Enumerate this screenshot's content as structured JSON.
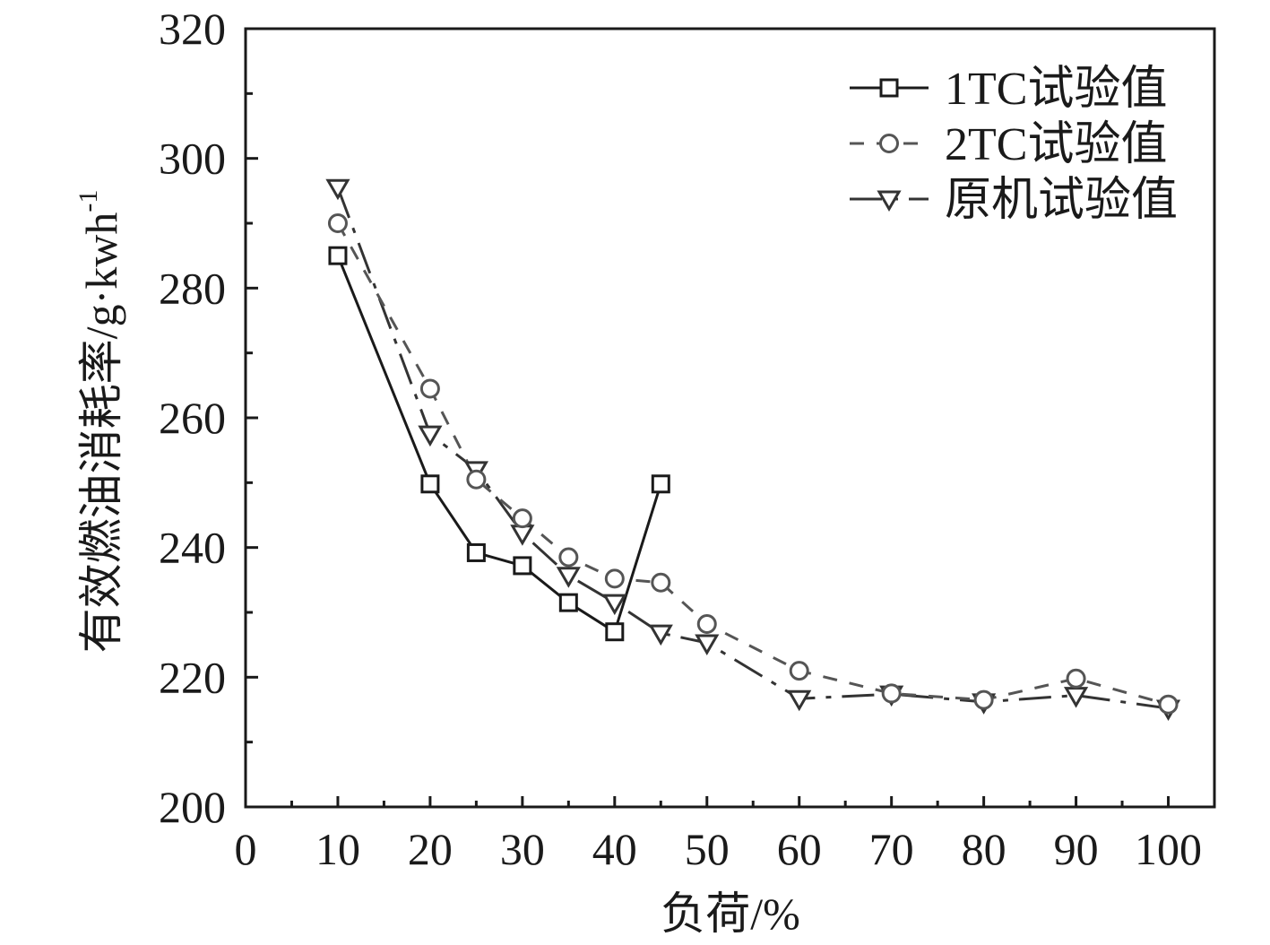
{
  "chart_data": {
    "type": "line",
    "xlabel": "负荷/%",
    "ylabel": "有效燃油消耗率/g·kwh",
    "ylabel_sup": "-1",
    "xlim": [
      0,
      105
    ],
    "ylim": [
      200,
      320
    ],
    "xticks": [
      0,
      10,
      20,
      30,
      40,
      50,
      60,
      70,
      80,
      90,
      100
    ],
    "yticks": [
      200,
      220,
      240,
      260,
      280,
      300,
      320
    ],
    "legend_position": "top-right",
    "series": [
      {
        "name": "1TC试验值",
        "marker": "square",
        "line": "solid",
        "color": "#1a1a1a",
        "x": [
          10,
          20,
          25,
          30,
          35,
          40,
          45
        ],
        "y": [
          285,
          249.8,
          239.2,
          237.2,
          231.5,
          227,
          249.8
        ]
      },
      {
        "name": "2TC试验值",
        "marker": "circle",
        "line": "dashed",
        "color": "#555555",
        "x": [
          10,
          20,
          25,
          30,
          35,
          40,
          45,
          50,
          60,
          70,
          80,
          90,
          100
        ],
        "y": [
          290,
          264.5,
          250.5,
          244.5,
          238.5,
          235.2,
          234.6,
          228.2,
          221,
          217.5,
          216.5,
          219.8,
          215.8
        ]
      },
      {
        "name": "原机试验值",
        "marker": "triangle-down",
        "line": "dash-dot",
        "color": "#333333",
        "x": [
          10,
          20,
          25,
          30,
          35,
          40,
          45,
          50,
          60,
          70,
          80,
          90,
          100
        ],
        "y": [
          295.5,
          257.5,
          252,
          242.2,
          235.7,
          231.5,
          226.8,
          225.3,
          216.7,
          217.4,
          216.2,
          217.2,
          215.2
        ]
      }
    ]
  }
}
